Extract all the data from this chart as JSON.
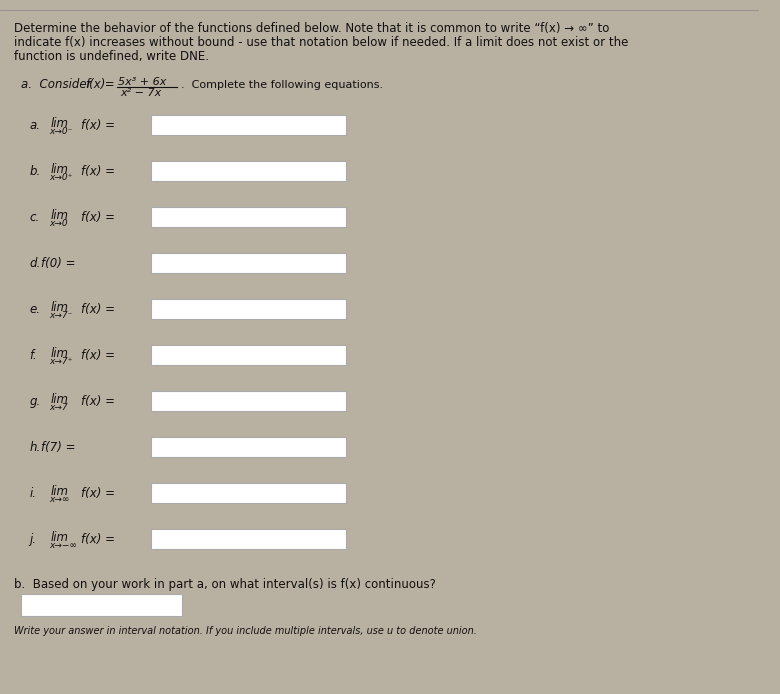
{
  "bg_color": "#b8b0a0",
  "paper_color": "#f2efe8",
  "box_color": "#e8e4db",
  "title_text1": "Determine the behavior of the functions defined below. Note that it is common to write “f(x) → ∞” to",
  "title_text2": "indicate f(x) increases without bound - use that notation below if needed. If a limit does not exist or the",
  "title_text3": "function is undefined, write DNE.",
  "fraction_num": "5x³ + 6x",
  "fraction_den": "x² − 7x",
  "part_a_rest": "Complete the following equations.",
  "items": [
    {
      "label": "a.",
      "has_lim": true,
      "sub_text": "x→0⁻",
      "func": "f(x) ="
    },
    {
      "label": "b.",
      "has_lim": true,
      "sub_text": "x→0⁺",
      "func": "f(x) ="
    },
    {
      "label": "c.",
      "has_lim": true,
      "sub_text": "x→0",
      "func": "f(x) ="
    },
    {
      "label": "d.",
      "has_lim": false,
      "sub_text": "",
      "func": "f(0) ="
    },
    {
      "label": "e.",
      "has_lim": true,
      "sub_text": "x→7⁻",
      "func": "f(x) ="
    },
    {
      "label": "f.",
      "has_lim": true,
      "sub_text": "x→7⁺",
      "func": "f(x) ="
    },
    {
      "label": "g.",
      "has_lim": true,
      "sub_text": "x→7",
      "func": "f(x) ="
    },
    {
      "label": "h.",
      "has_lim": false,
      "sub_text": "",
      "func": "f(7) ="
    },
    {
      "label": "i.",
      "has_lim": true,
      "sub_text": "x→∞",
      "func": "f(x) ="
    },
    {
      "label": "j.",
      "has_lim": true,
      "sub_text": "x→−∞",
      "func": "f(x) ="
    }
  ],
  "part_b_label": "b.  Based on your work in part a, on what interval(s) is f(x) continuous?",
  "footer_text": "Write your answer in interval notation. If you include multiple intervals, use u to denote union.",
  "text_color": "#111111",
  "box_border_color": "#aaaaaa",
  "title_fs": 8.5,
  "body_fs": 8.5,
  "lim_fs": 8.5,
  "sub_fs": 6.5
}
